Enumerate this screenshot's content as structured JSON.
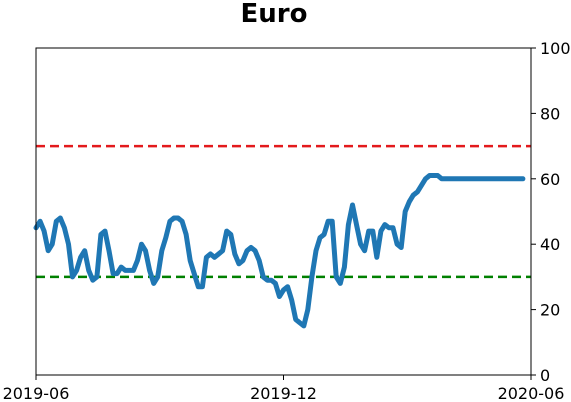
{
  "chart_data": {
    "type": "line",
    "title": "Euro",
    "xlabel": "",
    "ylabel": "",
    "x_ticks": [
      "2019-06",
      "2019-12",
      "2020-06"
    ],
    "x_range": [
      "2019-06",
      "2020-06"
    ],
    "ylim": [
      0,
      100
    ],
    "y_ticks": [
      0,
      20,
      40,
      60,
      80,
      100
    ],
    "y_axis_side": "right",
    "grid": false,
    "legend": "none",
    "reference_lines": [
      {
        "y": 70,
        "color": "#e31a1c",
        "style": "dashed"
      },
      {
        "y": 30,
        "color": "#008000",
        "style": "dashed"
      }
    ],
    "series": [
      {
        "color": "#1f77b4",
        "x": [
          "2019-06-01",
          "2019-06-04",
          "2019-06-07",
          "2019-06-10",
          "2019-06-13",
          "2019-06-16",
          "2019-06-19",
          "2019-06-22",
          "2019-06-25",
          "2019-06-28",
          "2019-07-01",
          "2019-07-04",
          "2019-07-07",
          "2019-07-10",
          "2019-07-13",
          "2019-07-16",
          "2019-07-19",
          "2019-07-22",
          "2019-07-25",
          "2019-07-28",
          "2019-07-31",
          "2019-08-03",
          "2019-08-06",
          "2019-08-09",
          "2019-08-12",
          "2019-08-15",
          "2019-08-18",
          "2019-08-21",
          "2019-08-24",
          "2019-08-27",
          "2019-08-30",
          "2019-09-02",
          "2019-09-05",
          "2019-09-08",
          "2019-09-11",
          "2019-09-14",
          "2019-09-17",
          "2019-09-20",
          "2019-09-23",
          "2019-09-26",
          "2019-09-29",
          "2019-10-02",
          "2019-10-05",
          "2019-10-08",
          "2019-10-11",
          "2019-10-14",
          "2019-10-17",
          "2019-10-20",
          "2019-10-23",
          "2019-10-26",
          "2019-10-29",
          "2019-11-01",
          "2019-11-04",
          "2019-11-07",
          "2019-11-10",
          "2019-11-13",
          "2019-11-16",
          "2019-11-19",
          "2019-11-22",
          "2019-11-25",
          "2019-11-28",
          "2019-12-01",
          "2019-12-04",
          "2019-12-07",
          "2019-12-10",
          "2019-12-13",
          "2019-12-16",
          "2019-12-19",
          "2019-12-22",
          "2019-12-25",
          "2019-12-28",
          "2019-12-31",
          "2020-01-03",
          "2020-01-06",
          "2020-01-09",
          "2020-01-12",
          "2020-01-15",
          "2020-01-18",
          "2020-01-21",
          "2020-01-24",
          "2020-01-27",
          "2020-01-30",
          "2020-02-02",
          "2020-02-05",
          "2020-02-08",
          "2020-02-11",
          "2020-02-14",
          "2020-02-17",
          "2020-02-20",
          "2020-02-23",
          "2020-02-26",
          "2020-02-29",
          "2020-03-03",
          "2020-03-06",
          "2020-03-09",
          "2020-03-12",
          "2020-03-15",
          "2020-03-18",
          "2020-03-21",
          "2020-03-24",
          "2020-03-27",
          "2020-03-30",
          "2020-04-02",
          "2020-04-05",
          "2020-04-08",
          "2020-04-11",
          "2020-04-14",
          "2020-04-17",
          "2020-04-20",
          "2020-04-23",
          "2020-04-26",
          "2020-04-29",
          "2020-05-02",
          "2020-05-05",
          "2020-05-08",
          "2020-05-11",
          "2020-05-14",
          "2020-05-17",
          "2020-05-20",
          "2020-05-23",
          "2020-05-26"
        ],
        "values": [
          45,
          47,
          44,
          38,
          40,
          47,
          48,
          45,
          40,
          30,
          32,
          36,
          38,
          32,
          29,
          30,
          43,
          44,
          38,
          31,
          31,
          33,
          32,
          32,
          32,
          35,
          40,
          38,
          32,
          28,
          30,
          38,
          42,
          47,
          48,
          48,
          47,
          43,
          35,
          31,
          27,
          27,
          36,
          37,
          36,
          37,
          38,
          44,
          43,
          37,
          34,
          35,
          38,
          39,
          38,
          35,
          30,
          29,
          29,
          28,
          24,
          26,
          27,
          23,
          17,
          16,
          15,
          20,
          30,
          38,
          42,
          43,
          47,
          47,
          30,
          28,
          33,
          46,
          52,
          46,
          40,
          38,
          44,
          44,
          36,
          44,
          46,
          45,
          45,
          40,
          39,
          50,
          53,
          55,
          56,
          58,
          60,
          61,
          61,
          61,
          60,
          60,
          60,
          60,
          60,
          60,
          60,
          60,
          60,
          60,
          60,
          60,
          60,
          60,
          60,
          60,
          60,
          60,
          60,
          60,
          60
        ]
      }
    ]
  }
}
